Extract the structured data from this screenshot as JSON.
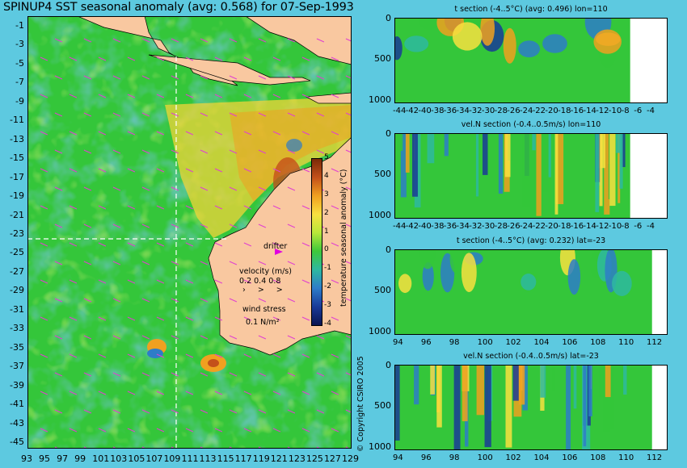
{
  "title": "SPINUP4 SST seasonal anomaly (avg: 0.568) for 07-Sep-1993",
  "colors": {
    "ocean_base": "#34c63a",
    "land": "#f9c8a0",
    "background": "#5dc9e0",
    "drifter": "#e000e0",
    "wind_arrow": "#e040d0",
    "section_line": "#ffffff"
  },
  "map": {
    "lon_ticks": [
      "93",
      "95",
      "97",
      "99",
      "101",
      "103",
      "105",
      "107",
      "109",
      "111",
      "113",
      "115",
      "117",
      "119",
      "121",
      "123",
      "125",
      "127",
      "129"
    ],
    "lat_ticks": [
      "-1",
      "-3",
      "-5",
      "-7",
      "-9",
      "-11",
      "-13",
      "-15",
      "-17",
      "-19",
      "-21",
      "-23",
      "-25",
      "-27",
      "-29",
      "-31",
      "-33",
      "-35",
      "-37",
      "-39",
      "-41",
      "-43",
      "-45"
    ],
    "section_lon": 110,
    "section_lat": -23,
    "drifter_label": "drifter",
    "velocity_label": "velocity (m/s)",
    "velocity_scale": [
      "0.2",
      "0.4",
      "0.8"
    ],
    "wind_label": "wind stress",
    "wind_scale": "0.1 N/m²"
  },
  "colorbar": {
    "label": "temperature seasonal anomaly (°C)",
    "ticks": [
      "5",
      "4",
      "3",
      "2",
      "1",
      "0",
      "-1",
      "-2",
      "-3",
      "-4"
    ],
    "colors": [
      "#7a2a08",
      "#c4501a",
      "#f0a020",
      "#f8e040",
      "#b8e83a",
      "#3ec83a",
      "#2eb8a0",
      "#2e7cc8",
      "#1a3a98",
      "#0a1450"
    ]
  },
  "panels": [
    {
      "title": "t section (-4..5°C) (avg: 0.496) lon=110",
      "xticks": [
        "-44",
        "-42",
        "-40",
        "-38",
        "-36",
        "-34",
        "-32",
        "-30",
        "-28",
        "-26",
        "-24",
        "-22",
        "-20",
        "-18",
        "-16",
        "-14",
        "-12",
        "-10",
        "-8",
        "-6",
        "-4"
      ],
      "yticks": [
        "0",
        "500",
        "1000"
      ]
    },
    {
      "title": "vel.N section (-0.4..0.5m/s) lon=110",
      "xticks": [
        "-44",
        "-42",
        "-40",
        "-38",
        "-36",
        "-34",
        "-32",
        "-30",
        "-28",
        "-26",
        "-24",
        "-22",
        "-20",
        "-18",
        "-16",
        "-14",
        "-12",
        "-10",
        "-8",
        "-6",
        "-4"
      ],
      "yticks": [
        "0",
        "500",
        "1000"
      ]
    },
    {
      "title": "t section (-4..5°C) (avg: 0.232) lat=-23",
      "xticks": [
        "94",
        "96",
        "98",
        "100",
        "102",
        "104",
        "106",
        "108",
        "110",
        "112"
      ],
      "yticks": [
        "0",
        "500",
        "1000"
      ]
    },
    {
      "title": "vel.N section (-0.4..0.5m/s) lat=-23",
      "xticks": [
        "94",
        "96",
        "98",
        "100",
        "102",
        "104",
        "106",
        "108",
        "110",
        "112"
      ],
      "yticks": [
        "0",
        "500",
        "1000"
      ]
    }
  ],
  "copyright": "© Copyright CSIRO 2005"
}
